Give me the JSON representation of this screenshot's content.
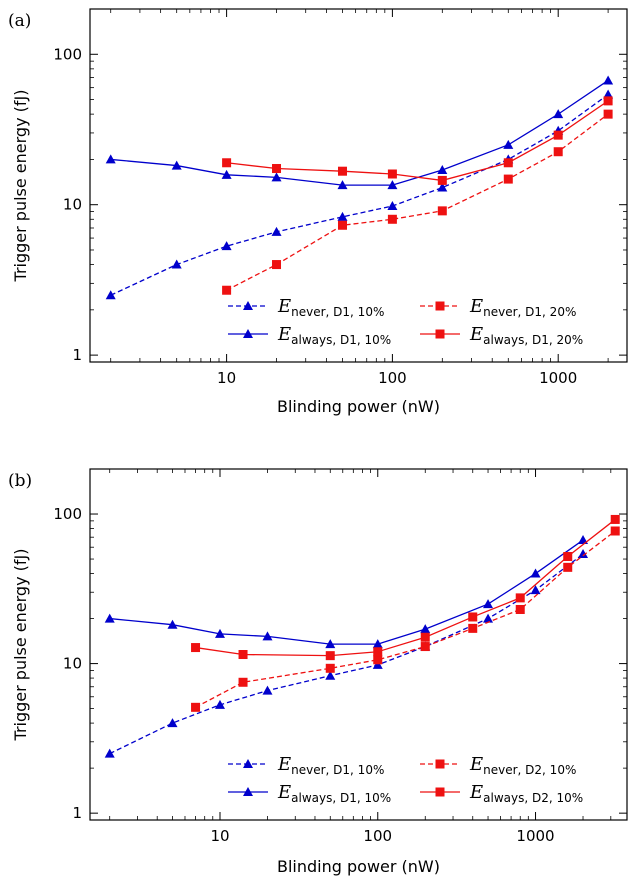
{
  "chart_data": [
    {
      "type": "line",
      "panel_label": "(a)",
      "xlabel": "Blinding power (nW)",
      "ylabel": "Trigger pulse energy (fJ)",
      "xscale": "log",
      "yscale": "log",
      "xlim": [
        1.5,
        2600
      ],
      "ylim": [
        0.9,
        200
      ],
      "xticks": [
        10,
        100,
        1000
      ],
      "xtick_labels": [
        "10",
        "100",
        "1000"
      ],
      "yticks": [
        1,
        10,
        100
      ],
      "ytick_labels": [
        "1",
        "10",
        "100"
      ],
      "grid": false,
      "legend_position": "lower-right",
      "series": [
        {
          "label_main": "E",
          "label_sub": "never, D1, 10%",
          "color": "#0000cc",
          "dash": "dashed",
          "marker": "triangle",
          "x": [
            2,
            5,
            10,
            20,
            50,
            100,
            200,
            500,
            1000,
            2000
          ],
          "y": [
            2.5,
            4.0,
            5.3,
            6.6,
            8.3,
            9.8,
            13,
            20,
            31,
            54
          ]
        },
        {
          "label_main": "E",
          "label_sub": "always, D1, 10%",
          "color": "#0000cc",
          "dash": "solid",
          "marker": "triangle",
          "x": [
            2,
            5,
            10,
            20,
            50,
            100,
            200,
            500,
            1000,
            2000
          ],
          "y": [
            20,
            18.2,
            15.8,
            15.2,
            13.5,
            13.5,
            17,
            25,
            40,
            67
          ]
        },
        {
          "label_main": "E",
          "label_sub": "never, D1, 20%",
          "color": "#ee1111",
          "dash": "dashed",
          "marker": "square",
          "x": [
            10,
            20,
            50,
            100,
            200,
            500,
            1000,
            2000
          ],
          "y": [
            2.7,
            4.0,
            7.3,
            8.0,
            9.1,
            14.8,
            22.5,
            40
          ]
        },
        {
          "label_main": "E",
          "label_sub": "always, D1, 20%",
          "color": "#ee1111",
          "dash": "solid",
          "marker": "square",
          "x": [
            10,
            20,
            50,
            100,
            200,
            500,
            1000,
            2000
          ],
          "y": [
            19,
            17.4,
            16.7,
            16,
            14.5,
            19,
            29,
            49
          ]
        }
      ]
    },
    {
      "type": "line",
      "panel_label": "(b)",
      "xlabel": "Blinding power (nW)",
      "ylabel": "Trigger pulse energy (fJ)",
      "xscale": "log",
      "yscale": "log",
      "xlim": [
        1.5,
        3800
      ],
      "ylim": [
        0.9,
        200
      ],
      "xticks": [
        10,
        100,
        1000
      ],
      "xtick_labels": [
        "10",
        "100",
        "1000"
      ],
      "yticks": [
        1,
        10,
        100
      ],
      "ytick_labels": [
        "1",
        "10",
        "100"
      ],
      "grid": false,
      "legend_position": "lower-right",
      "series": [
        {
          "label_main": "E",
          "label_sub": "never, D1, 10%",
          "color": "#0000cc",
          "dash": "dashed",
          "marker": "triangle",
          "x": [
            2,
            5,
            10,
            20,
            50,
            100,
            200,
            500,
            1000,
            2000
          ],
          "y": [
            2.5,
            4.0,
            5.3,
            6.6,
            8.3,
            9.8,
            13,
            20,
            31,
            54
          ]
        },
        {
          "label_main": "E",
          "label_sub": "always, D1, 10%",
          "color": "#0000cc",
          "dash": "solid",
          "marker": "triangle",
          "x": [
            2,
            5,
            10,
            20,
            50,
            100,
            200,
            500,
            1000,
            2000
          ],
          "y": [
            20,
            18.2,
            15.8,
            15.2,
            13.5,
            13.5,
            17,
            25,
            40,
            67
          ]
        },
        {
          "label_main": "E",
          "label_sub": "never, D2, 10%",
          "color": "#ee1111",
          "dash": "dashed",
          "marker": "square",
          "x": [
            7,
            14,
            50,
            100,
            200,
            400,
            800,
            1600,
            3200
          ],
          "y": [
            5.1,
            7.5,
            9.3,
            10.6,
            13,
            17.2,
            23,
            44,
            77
          ]
        },
        {
          "label_main": "E",
          "label_sub": "always, D2, 10%",
          "color": "#ee1111",
          "dash": "solid",
          "marker": "square",
          "x": [
            7,
            14,
            50,
            100,
            200,
            400,
            800,
            1600,
            3200
          ],
          "y": [
            12.8,
            11.5,
            11.3,
            12,
            15,
            20.5,
            27.5,
            52,
            92
          ]
        }
      ]
    }
  ]
}
